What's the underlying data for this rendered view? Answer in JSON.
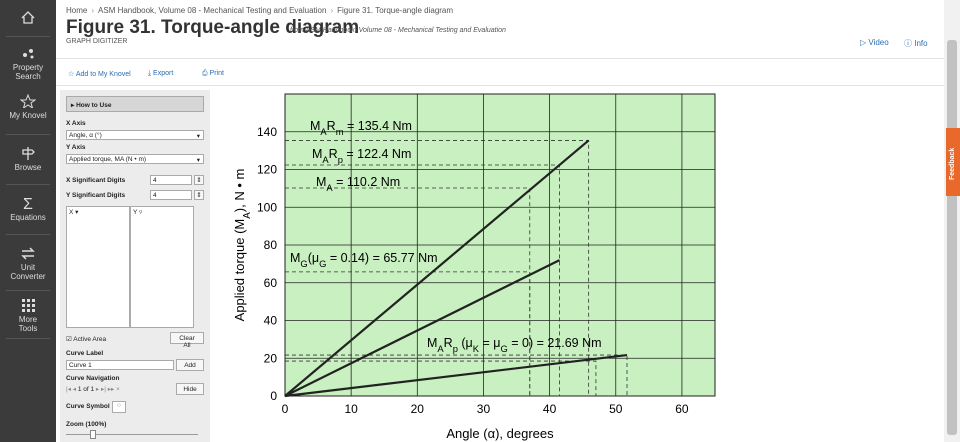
{
  "breadcrumb": [
    "Home",
    "ASM Handbook, Volume 08 - Mechanical Testing and Evaluation",
    "Figure 31. Torque-angle diagram"
  ],
  "header": {
    "title": "Figure 31. Torque-angle diagram",
    "source": "from ASM Handbook, Volume 08 - Mechanical Testing and Evaluation",
    "subtitle": "GRAPH DIGITIZER",
    "links": [
      "Video",
      "Info"
    ]
  },
  "nav": [
    "Property Search",
    "My Knovel",
    "Browse",
    "Equations",
    "Unit Converter",
    "More Tools"
  ],
  "toolbar": [
    "Add to My Knovel",
    "Export",
    "Print"
  ],
  "panel": {
    "how_to": "How to Use",
    "x_axis_label": "X Axis",
    "x_axis_value": "Angle, α (°)",
    "y_axis_label": "Y Axis",
    "y_axis_value": "Applied torque, MA (N • m)",
    "x_digits_label": "X Significant Digits",
    "x_digits": 4,
    "y_digits_label": "Y Significant Digits",
    "y_digits": 4,
    "col_x": "X",
    "col_y": "Y",
    "active_area": "Active Area",
    "clear_all": "Clear All",
    "curve_label": "Curve Label",
    "curve_name": "Curve 1",
    "add": "Add",
    "curve_nav": "Curve Navigation",
    "nav_count": "1 of 1",
    "hide": "Hide",
    "curve_symbol": "Curve Symbol",
    "zoom": "Zoom (100%)"
  },
  "feedback": "Feedback",
  "chart_data": {
    "type": "line",
    "xlabel": "Angle (α), degrees",
    "ylabel_parts": [
      {
        "text": "Applied torque (M"
      },
      {
        "sub": "A"
      },
      {
        "text": "), N • m"
      }
    ],
    "xlim": [
      0,
      65
    ],
    "ylim": [
      0,
      160
    ],
    "xticks": [
      0,
      10,
      20,
      30,
      40,
      50,
      60
    ],
    "yticks": [
      0,
      20,
      40,
      60,
      80,
      100,
      120,
      140
    ],
    "grid": true,
    "background": "#c8f0c0",
    "grid_color": "#222",
    "series": [
      {
        "color": "#222",
        "x": [
          0,
          45.9
        ],
        "values": [
          0,
          135.4
        ]
      },
      {
        "color": "#222",
        "x": [
          0,
          41.5
        ],
        "values": [
          0,
          72
        ]
      },
      {
        "color": "#222",
        "x": [
          0,
          51.7
        ],
        "values": [
          0,
          21.69
        ]
      }
    ],
    "guides": [
      {
        "x": 45.9,
        "y": 135.4
      },
      {
        "x": 41.5,
        "y": 122.4
      },
      {
        "x": 37,
        "y": 110.2
      },
      {
        "x": 37,
        "y": 65.77
      },
      {
        "x": 51.7,
        "y": 21.69
      },
      {
        "x": 47,
        "y": 18.5
      }
    ],
    "annotations": [
      {
        "parts": [
          {
            "text": "M"
          },
          {
            "sub": "A"
          },
          {
            "text": "R"
          },
          {
            "sub": "m"
          },
          {
            "text": " = 135.4 Nm"
          }
        ]
      },
      {
        "parts": [
          {
            "text": "M"
          },
          {
            "sub": "A"
          },
          {
            "text": "R"
          },
          {
            "sub": "p"
          },
          {
            "text": " = 122.4 Nm"
          }
        ]
      },
      {
        "parts": [
          {
            "text": "M"
          },
          {
            "sub": "A"
          },
          {
            "text": " = 110.2 Nm"
          }
        ]
      },
      {
        "parts": [
          {
            "text": "M"
          },
          {
            "sub": "G"
          },
          {
            "text": "(μ"
          },
          {
            "sub": "G"
          },
          {
            "text": " = 0.14) = 65.77 Nm"
          }
        ]
      },
      {
        "parts": [
          {
            "text": "M"
          },
          {
            "sub": "A"
          },
          {
            "text": "R"
          },
          {
            "sub": "p"
          },
          {
            "text": " (μ"
          },
          {
            "sub": "K"
          },
          {
            "text": " = μ"
          },
          {
            "sub": "G"
          },
          {
            "text": " = 0) = 21.69 Nm"
          }
        ]
      }
    ]
  }
}
